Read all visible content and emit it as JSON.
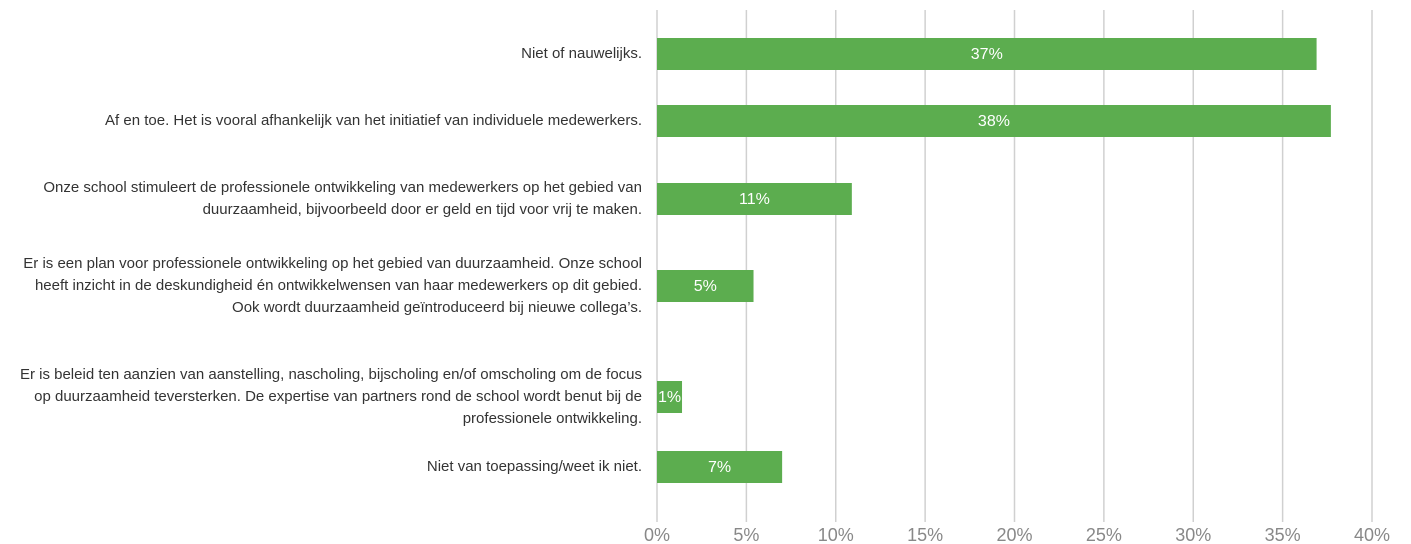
{
  "chart_data": {
    "type": "bar",
    "orientation": "horizontal",
    "categories": [
      "Niet of nauwelijks.",
      "Af en toe. Het is vooral afhankelijk van het initiatief van individuele medewerkers.",
      "Onze school stimuleert de professionele ontwikkeling van medewerkers op het gebied van duurzaamheid, bijvoorbeeld door er geld en tijd voor vrij te maken.",
      "Er is een plan voor professionele ontwikkeling op het gebied van duurzaamheid. Onze school heeft inzicht in de deskundigheid én ontwikkelwensen van haar medewerkers op dit gebied. Ook wordt duurzaamheid geïntroduceerd bij nieuwe collega’s.",
      "Er is beleid ten aanzien van aanstelling, nascholing, bijscholing en/of omscholing om de focus op duurzaamheid teversterken. De expertise van partners rond de school wordt benut bij de professionele ontwikkeling.",
      "Niet van toepassing/weet ik niet."
    ],
    "values": [
      36.9,
      37.7,
      10.9,
      5.4,
      1.4,
      7.0
    ],
    "value_labels": [
      "37%",
      "38%",
      "11%",
      "5%",
      "1%",
      "7%"
    ],
    "color": "#5cad4f",
    "xlim": [
      0,
      40
    ],
    "xticks": [
      {
        "value": 0,
        "label": "0%"
      },
      {
        "value": 5,
        "label": "5%"
      },
      {
        "value": 10,
        "label": "10%"
      },
      {
        "value": 15,
        "label": "15%"
      },
      {
        "value": 20,
        "label": "20%"
      },
      {
        "value": 25,
        "label": "25%"
      },
      {
        "value": 30,
        "label": "30%"
      },
      {
        "value": 35,
        "label": "35%"
      },
      {
        "value": 40,
        "label": "40%"
      }
    ],
    "grid": true
  }
}
